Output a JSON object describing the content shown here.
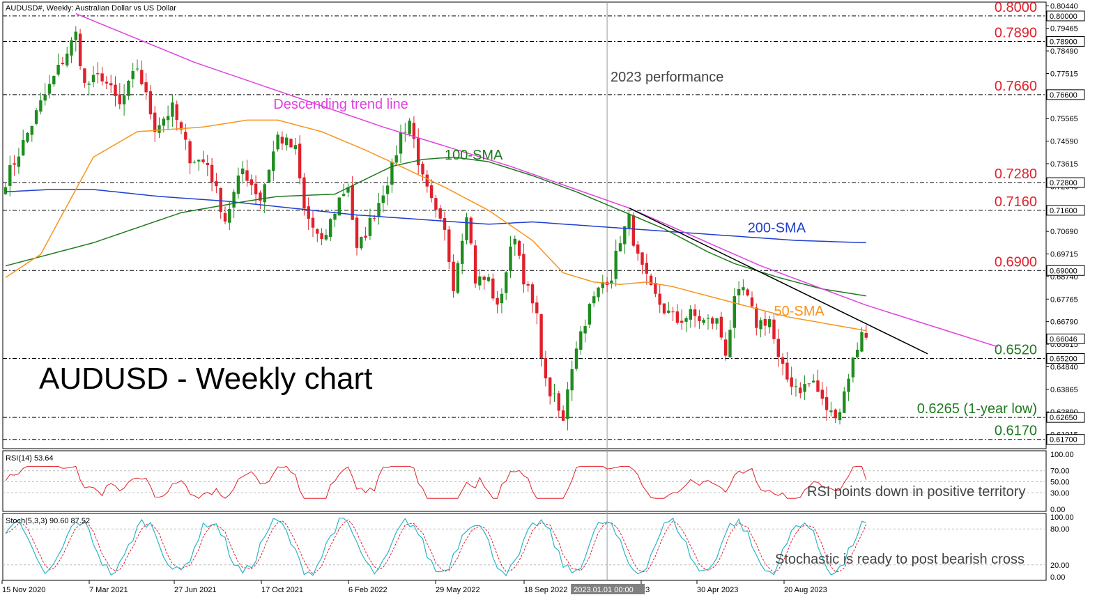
{
  "header": {
    "symbol_title": "AUDUSD#, Weekly:  Australian Dollar vs US Dollar",
    "big_title": "AUDUSD - Weekly chart",
    "vline_label": "2023 performance",
    "vline_time_tag": "2023.01.01 00:00"
  },
  "colors": {
    "bull": "#1e8c1e",
    "bear": "#e0202a",
    "sma50": "#f7941d",
    "sma100": "#1f7a1f",
    "sma200": "#1f3fcf",
    "trend_magenta": "#e040e0",
    "trend_black": "#000000",
    "level_red": "#e0202a",
    "level_green": "#1f7a1f",
    "rsi": "#e0202a",
    "stoch_main": "#2ab5c8",
    "stoch_signal": "#e0202a"
  },
  "chart_data": {
    "type": "candlestick",
    "timeframe": "Weekly",
    "ylim": [
      0.613,
      0.806
    ],
    "y_ticks": [
      "0.80440",
      "0.79465",
      "0.78490",
      "0.77515",
      "0.76540",
      "0.75565",
      "0.74590",
      "0.73615",
      "0.72640",
      "0.71665",
      "0.70690",
      "0.69715",
      "0.68740",
      "0.67765",
      "0.66790",
      "0.65815",
      "0.64840",
      "0.63865",
      "0.62890",
      "0.61915"
    ],
    "x_ticks": [
      "15 Nov 2020",
      "7 Mar 2021",
      "27 Jun 2021",
      "17 Oct 2021",
      "6 Feb 2022",
      "29 May 2022",
      "18 Sep 2022",
      "23",
      "30 Apr 2023",
      "20 Aug 2023"
    ],
    "current_price": "0.66046",
    "levels": [
      {
        "value": 0.8,
        "label": "0.8000",
        "tag": "0.80000",
        "color": "red"
      },
      {
        "value": 0.789,
        "label": "0.7890",
        "tag": "0.78900",
        "color": "red"
      },
      {
        "value": 0.766,
        "label": "0.7660",
        "tag": "0.76600",
        "color": "red"
      },
      {
        "value": 0.728,
        "label": "0.7280",
        "tag": "0.72800",
        "color": "red"
      },
      {
        "value": 0.716,
        "label": "0.7160",
        "tag": "0.71600",
        "color": "red"
      },
      {
        "value": 0.69,
        "label": "0.6900",
        "tag": "0.69000",
        "color": "red"
      },
      {
        "value": 0.652,
        "label": "0.6520",
        "tag": "0.65200",
        "color": "green"
      },
      {
        "value": 0.6265,
        "label": "0.6265 (1-year low)",
        "tag": "0.62650",
        "color": "green"
      },
      {
        "value": 0.617,
        "label": "0.6170",
        "tag": "0.61700",
        "color": "green"
      }
    ],
    "close_anchors": [
      [
        0,
        0.729
      ],
      [
        4,
        0.745
      ],
      [
        8,
        0.762
      ],
      [
        12,
        0.777
      ],
      [
        16,
        0.792
      ],
      [
        18,
        0.77
      ],
      [
        22,
        0.774
      ],
      [
        26,
        0.761
      ],
      [
        30,
        0.778
      ],
      [
        34,
        0.752
      ],
      [
        38,
        0.76
      ],
      [
        42,
        0.739
      ],
      [
        46,
        0.736
      ],
      [
        50,
        0.712
      ],
      [
        54,
        0.734
      ],
      [
        58,
        0.721
      ],
      [
        62,
        0.748
      ],
      [
        66,
        0.742
      ],
      [
        68,
        0.716
      ],
      [
        72,
        0.701
      ],
      [
        76,
        0.721
      ],
      [
        78,
        0.727
      ],
      [
        80,
        0.698
      ],
      [
        84,
        0.715
      ],
      [
        88,
        0.734
      ],
      [
        90,
        0.749
      ],
      [
        92,
        0.755
      ],
      [
        95,
        0.729
      ],
      [
        98,
        0.714
      ],
      [
        100,
        0.706
      ],
      [
        102,
        0.684
      ],
      [
        105,
        0.716
      ],
      [
        107,
        0.686
      ],
      [
        110,
        0.686
      ],
      [
        112,
        0.673
      ],
      [
        114,
        0.69
      ],
      [
        116,
        0.706
      ],
      [
        118,
        0.687
      ],
      [
        121,
        0.669
      ],
      [
        123,
        0.641
      ],
      [
        125,
        0.634
      ],
      [
        127,
        0.624
      ],
      [
        128,
        0.64
      ],
      [
        130,
        0.658
      ],
      [
        133,
        0.674
      ],
      [
        136,
        0.685
      ],
      [
        138,
        0.688
      ],
      [
        140,
        0.704
      ],
      [
        142,
        0.712
      ],
      [
        144,
        0.695
      ],
      [
        147,
        0.681
      ],
      [
        150,
        0.673
      ],
      [
        153,
        0.668
      ],
      [
        156,
        0.671
      ],
      [
        159,
        0.668
      ],
      [
        162,
        0.668
      ],
      [
        164,
        0.655
      ],
      [
        166,
        0.676
      ],
      [
        168,
        0.682
      ],
      [
        171,
        0.667
      ],
      [
        174,
        0.669
      ],
      [
        176,
        0.651
      ],
      [
        178,
        0.643
      ],
      [
        181,
        0.639
      ],
      [
        184,
        0.642
      ],
      [
        186,
        0.633
      ],
      [
        188,
        0.628
      ],
      [
        190,
        0.63
      ],
      [
        192,
        0.645
      ],
      [
        194,
        0.657
      ],
      [
        195,
        0.665
      ],
      [
        196,
        0.66
      ]
    ],
    "sma50_anchors": [
      [
        0,
        0.687
      ],
      [
        8,
        0.697
      ],
      [
        20,
        0.739
      ],
      [
        30,
        0.75
      ],
      [
        45,
        0.752
      ],
      [
        55,
        0.755
      ],
      [
        62,
        0.755
      ],
      [
        72,
        0.75
      ],
      [
        82,
        0.742
      ],
      [
        90,
        0.735
      ],
      [
        100,
        0.726
      ],
      [
        110,
        0.716
      ],
      [
        120,
        0.703
      ],
      [
        127,
        0.689
      ],
      [
        134,
        0.685
      ],
      [
        140,
        0.684
      ],
      [
        146,
        0.685
      ],
      [
        152,
        0.683
      ],
      [
        160,
        0.679
      ],
      [
        166,
        0.676
      ],
      [
        172,
        0.673
      ],
      [
        178,
        0.67
      ],
      [
        184,
        0.668
      ],
      [
        190,
        0.666
      ],
      [
        196,
        0.664
      ]
    ],
    "sma100_anchors": [
      [
        0,
        0.692
      ],
      [
        20,
        0.702
      ],
      [
        40,
        0.715
      ],
      [
        55,
        0.72
      ],
      [
        62,
        0.722
      ],
      [
        75,
        0.723
      ],
      [
        88,
        0.735
      ],
      [
        95,
        0.738
      ],
      [
        102,
        0.739
      ],
      [
        110,
        0.737
      ],
      [
        120,
        0.731
      ],
      [
        130,
        0.724
      ],
      [
        140,
        0.716
      ],
      [
        150,
        0.708
      ],
      [
        160,
        0.698
      ],
      [
        166,
        0.693
      ],
      [
        176,
        0.687
      ],
      [
        186,
        0.682
      ],
      [
        196,
        0.679
      ]
    ],
    "sma200_anchors": [
      [
        0,
        0.724
      ],
      [
        10,
        0.725
      ],
      [
        20,
        0.725
      ],
      [
        35,
        0.722
      ],
      [
        50,
        0.72
      ],
      [
        65,
        0.717
      ],
      [
        80,
        0.714
      ],
      [
        95,
        0.712
      ],
      [
        110,
        0.71
      ],
      [
        120,
        0.711
      ],
      [
        135,
        0.709
      ],
      [
        150,
        0.707
      ],
      [
        165,
        0.705
      ],
      [
        180,
        0.703
      ],
      [
        196,
        0.702
      ]
    ],
    "trend_lines": [
      {
        "name": "Descending trend line",
        "points": [
          [
            16,
            0.801
          ],
          [
            43,
            0.78
          ],
          [
            86,
            0.752
          ],
          [
            115,
            0.735
          ],
          [
            142,
            0.717
          ],
          [
            172,
            0.692
          ],
          [
            196,
            0.675
          ],
          [
            226,
            0.657
          ]
        ],
        "color": "trend_magenta"
      },
      {
        "name": "",
        "points": [
          [
            142,
            0.717
          ],
          [
            210,
            0.654
          ]
        ],
        "color": "trend_black"
      }
    ],
    "vertical_line_index": 137,
    "annotations": [
      {
        "text": "Descending trend line",
        "x": 61,
        "y": 0.76,
        "color": "trend_magenta"
      },
      {
        "text": "100-SMA",
        "x": 100,
        "y": 0.738,
        "color": "sma100"
      },
      {
        "text": "200-SMA",
        "x": 169,
        "y": 0.7065,
        "color": "sma200"
      },
      {
        "text": "50-SMA",
        "x": 175,
        "y": 0.6705,
        "color": "sma50"
      }
    ],
    "rsi": {
      "label": "RSI(14) 53.64",
      "value": 53.64,
      "ylim": [
        0,
        100
      ],
      "y_ticks": [
        "100.00",
        "70.00",
        "50.00",
        "30.00",
        "0.00"
      ],
      "comment": "RSI points down in positive territory"
    },
    "stoch": {
      "label": "Stoch(5,3,3) 90.60 87.52",
      "main": 90.6,
      "signal": 87.52,
      "ylim": [
        0,
        100
      ],
      "y_ticks": [
        "100.00",
        "80.00",
        "20.00",
        "0.00"
      ],
      "comment": "Stochastic is ready to post bearish cross"
    }
  }
}
